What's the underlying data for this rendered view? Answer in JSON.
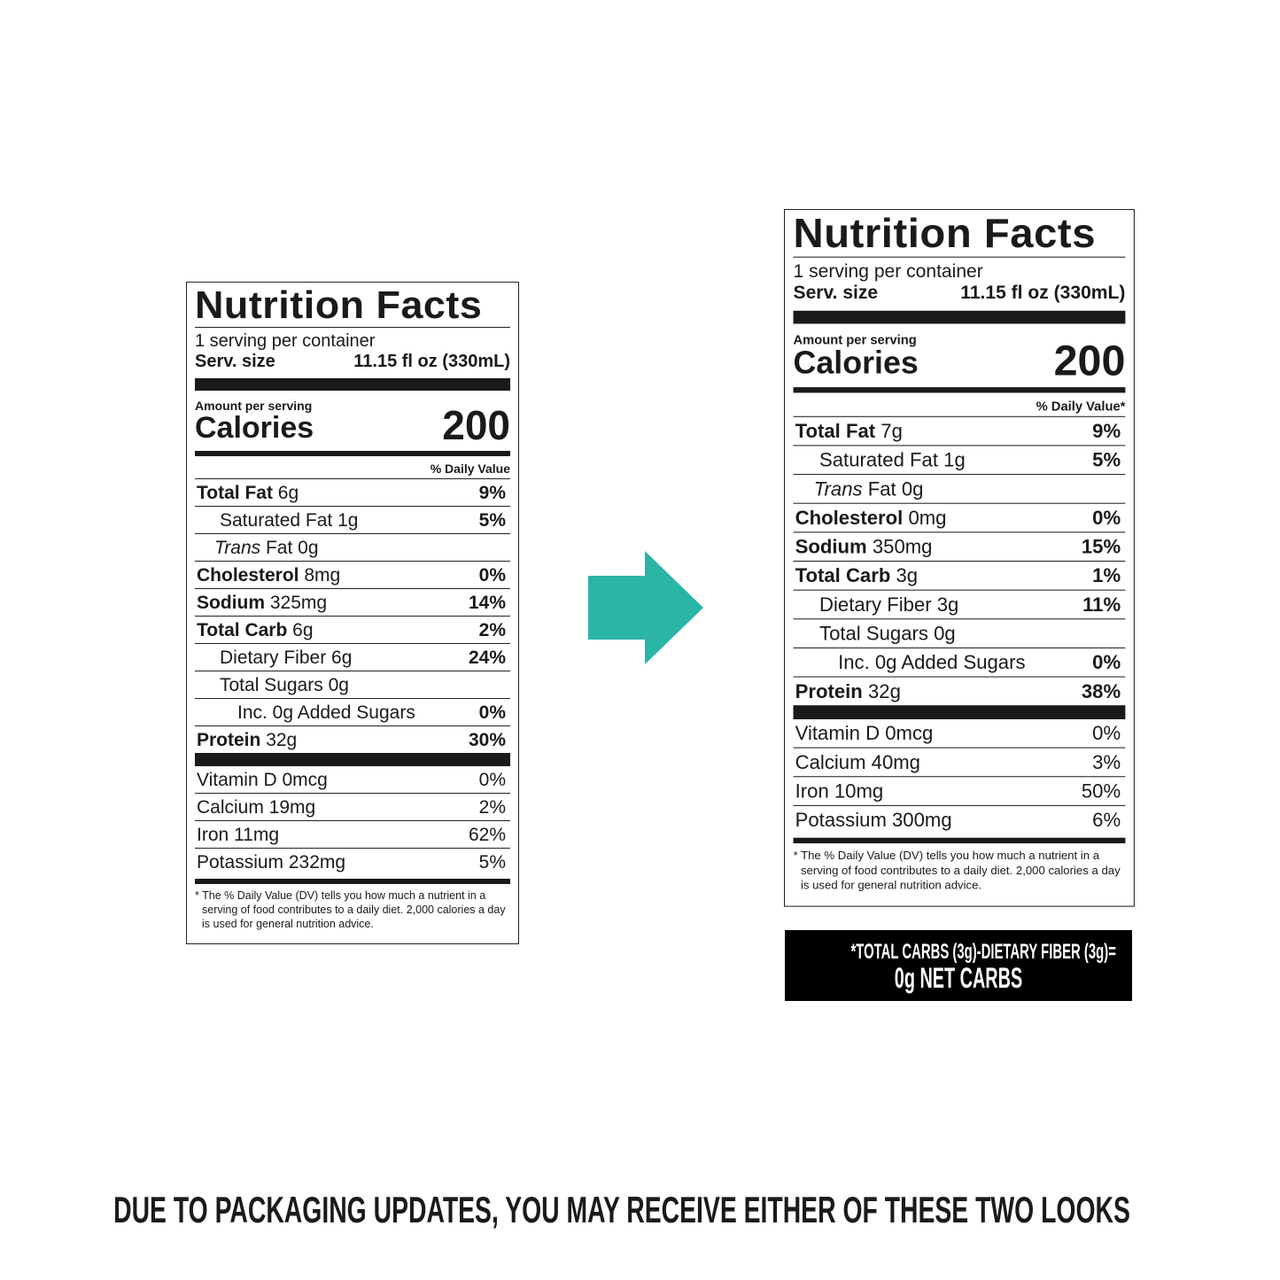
{
  "labels": [
    {
      "title": "Nutrition Facts",
      "servings": "1 serving per container",
      "serv_size_label": "Serv. size",
      "serv_size_value": "11.15 fl oz (330mL)",
      "amount_per_serving": "Amount per serving",
      "calories_label": "Calories",
      "calories_value": "200",
      "dv_header": "% Daily Value",
      "rows": [
        {
          "bold": "Total Fat",
          "amount": "6g",
          "dv": "9%",
          "indent": 0
        },
        {
          "bold": "",
          "amount": "Saturated Fat 1g",
          "dv": "5%",
          "indent": 1
        },
        {
          "bold": "",
          "italic": "Trans",
          "amount": "Fat 0g",
          "dv": "",
          "indent": 3
        },
        {
          "bold": "Cholesterol",
          "amount": "8mg",
          "dv": "0%",
          "indent": 0
        },
        {
          "bold": "Sodium",
          "amount": "325mg",
          "dv": "14%",
          "indent": 0
        },
        {
          "bold": "Total Carb",
          "amount": "6g",
          "dv": "2%",
          "indent": 0
        },
        {
          "bold": "",
          "amount": "Dietary Fiber 6g",
          "dv": "24%",
          "indent": 1
        },
        {
          "bold": "",
          "amount": "Total Sugars 0g",
          "dv": "",
          "indent": 1
        },
        {
          "bold": "",
          "amount": "Inc. 0g Added Sugars",
          "dv": "0%",
          "indent": 2
        },
        {
          "bold": "Protein",
          "amount": "32g",
          "dv": "30%",
          "indent": 0
        }
      ],
      "vitamins": [
        {
          "name": "Vitamin D 0mcg",
          "dv": "0%"
        },
        {
          "name": "Calcium 19mg",
          "dv": "2%"
        },
        {
          "name": "Iron 11mg",
          "dv": "62%"
        },
        {
          "name": "Potassium 232mg",
          "dv": "5%"
        }
      ],
      "footnote": "* The % Daily Value (DV) tells you how much a nutrient in a serving of food contributes to a daily diet. 2,000 calories a day is used for general nutrition advice."
    },
    {
      "title": "Nutrition Facts",
      "servings": "1 serving per container",
      "serv_size_label": "Serv. size",
      "serv_size_value": "11.15 fl oz (330mL)",
      "amount_per_serving": "Amount per serving",
      "calories_label": "Calories",
      "calories_value": "200",
      "dv_header": "% Daily Value*",
      "rows": [
        {
          "bold": "Total Fat",
          "amount": "7g",
          "dv": "9%",
          "indent": 0
        },
        {
          "bold": "",
          "amount": "Saturated Fat 1g",
          "dv": "5%",
          "indent": 1
        },
        {
          "bold": "",
          "italic": "Trans",
          "amount": "Fat 0g",
          "dv": "",
          "indent": 3
        },
        {
          "bold": "Cholesterol",
          "amount": "0mg",
          "dv": "0%",
          "indent": 0
        },
        {
          "bold": "Sodium",
          "amount": "350mg",
          "dv": "15%",
          "indent": 0
        },
        {
          "bold": "Total Carb",
          "amount": "3g",
          "dv": "1%",
          "indent": 0
        },
        {
          "bold": "",
          "amount": "Dietary Fiber 3g",
          "dv": "11%",
          "indent": 1
        },
        {
          "bold": "",
          "amount": "Total Sugars 0g",
          "dv": "",
          "indent": 1
        },
        {
          "bold": "",
          "amount": "Inc. 0g Added Sugars",
          "dv": "0%",
          "indent": 2
        },
        {
          "bold": "Protein",
          "amount": "32g",
          "dv": "38%",
          "indent": 0
        }
      ],
      "vitamins": [
        {
          "name": "Vitamin D 0mcg",
          "dv": "0%"
        },
        {
          "name": "Calcium 40mg",
          "dv": "3%"
        },
        {
          "name": "Iron 10mg",
          "dv": "50%"
        },
        {
          "name": "Potassium 300mg",
          "dv": "6%"
        }
      ],
      "footnote": "* The % Daily Value (DV) tells you how much a nutrient in a serving of food contributes to a daily diet. 2,000 calories a day is used for general nutrition advice."
    }
  ],
  "arrow": {
    "icon": "arrow-right-icon",
    "color": "#2bb5a6"
  },
  "net_carbs": {
    "line1": "*TOTAL CARBS (3g)-DIETARY FIBER (3g)=",
    "line2": "0g NET CARBS"
  },
  "notice": "DUE TO PACKAGING UPDATES, YOU MAY RECEIVE EITHER OF THESE TWO LOOKS"
}
